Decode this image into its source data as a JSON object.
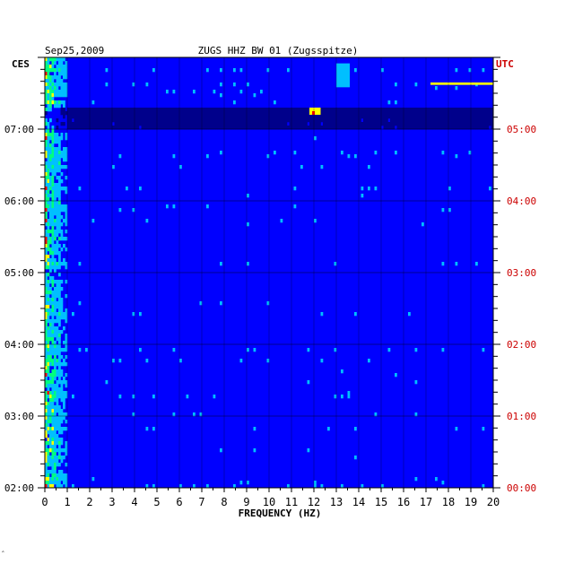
{
  "header": {
    "date": "Sep25,2009",
    "station": "ZUGS HHZ BW 01 (Zugsspitze)",
    "left_zone": "CES",
    "right_zone": "UTC"
  },
  "footer": {
    "mark": "‸"
  },
  "chart_data": {
    "type": "heatmap",
    "xlabel": "FREQUENCY (HZ)",
    "x_ticks": [
      "0",
      "1",
      "2",
      "3",
      "4",
      "5",
      "6",
      "7",
      "8",
      "9",
      "10",
      "11",
      "12",
      "13",
      "14",
      "15",
      "16",
      "17",
      "18",
      "19",
      "20"
    ],
    "xlim": [
      0,
      20
    ],
    "left_time_labels": [
      "07:00",
      "06:00",
      "05:00",
      "04:00",
      "03:00",
      "02:00"
    ],
    "right_time_labels": [
      "05:00",
      "04:00",
      "03:00",
      "02:00",
      "01:00",
      "00:00"
    ],
    "time_range_local": [
      "02:00",
      "08:00"
    ],
    "rows": 120,
    "cols": 200,
    "colormap": [
      "#00008b",
      "#0000ff",
      "#00bfff",
      "#00ff7f",
      "#ffff00",
      "#ff0000"
    ],
    "features": [
      {
        "desc": "strong low-frequency energy",
        "freq_hz": [
          0,
          1
        ]
      },
      {
        "desc": "dark band",
        "time_local": [
          "07:00",
          "07:18"
        ]
      },
      {
        "desc": "yellow/red burst",
        "freq_hz": [
          11.8,
          12.3
        ],
        "time_local": [
          "07:12",
          "07:18"
        ]
      },
      {
        "desc": "yellow streak",
        "freq_hz": [
          17.2,
          20
        ],
        "time_local": [
          "07:37",
          "07:39"
        ]
      },
      {
        "desc": "cyan/yellow patch",
        "freq_hz": [
          13,
          13.6
        ],
        "time_local": [
          "07:35",
          "07:55"
        ]
      }
    ],
    "grid": true
  }
}
